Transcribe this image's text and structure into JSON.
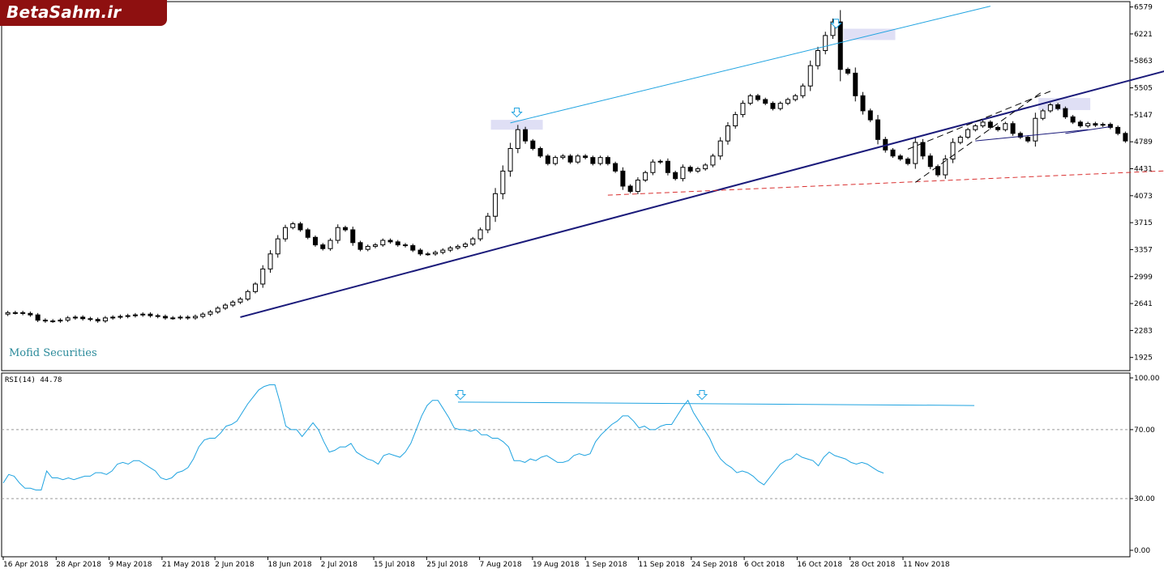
{
  "branding": {
    "logo_text": "BetaSahm.ir",
    "watermark": "Mofid Securities"
  },
  "colors": {
    "candle_up": "#ffffff",
    "candle_down": "#000000",
    "trend_main": "#1a1a7a",
    "trend_upper": "#1fa3e0",
    "trend_support": "#d93030",
    "rsi_line": "#1fa3e0",
    "highlight_box": "#dcdcf4",
    "arrow": "#1fa3e0"
  },
  "chart_data": [
    {
      "type": "candlestick",
      "name": "price",
      "x_ticks": [
        "16 Apr 2018",
        "28 Apr 2018",
        "9 May 2018",
        "21 May 2018",
        "2 Jun 2018",
        "18 Jun 2018",
        "2 Jul 2018",
        "15 Jul 2018",
        "25 Jul 2018",
        "7 Aug 2018",
        "19 Aug 2018",
        "1 Sep 2018",
        "11 Sep 2018",
        "24 Sep 2018",
        "6 Oct 2018",
        "16 Oct 2018",
        "28 Oct 2018",
        "11 Nov 2018"
      ],
      "y_ticks": [
        1925,
        2283,
        2641,
        2999,
        3357,
        3715,
        4073,
        4431,
        4789,
        5147,
        5505,
        5863,
        6221,
        6579
      ],
      "ylim": [
        1750,
        6650
      ],
      "closes": [
        2520,
        2520,
        2510,
        2490,
        2420,
        2410,
        2410,
        2420,
        2450,
        2460,
        2440,
        2430,
        2410,
        2450,
        2460,
        2470,
        2480,
        2490,
        2500,
        2480,
        2470,
        2450,
        2450,
        2460,
        2450,
        2470,
        2500,
        2530,
        2580,
        2620,
        2660,
        2700,
        2800,
        2900,
        3100,
        3300,
        3500,
        3650,
        3700,
        3620,
        3520,
        3420,
        3370,
        3480,
        3650,
        3620,
        3450,
        3360,
        3400,
        3420,
        3480,
        3460,
        3420,
        3410,
        3350,
        3300,
        3300,
        3320,
        3350,
        3380,
        3400,
        3430,
        3500,
        3620,
        3800,
        4100,
        4400,
        4700,
        4950,
        4800,
        4700,
        4600,
        4500,
        4580,
        4600,
        4520,
        4600,
        4580,
        4500,
        4580,
        4500,
        4400,
        4200,
        4130,
        4280,
        4380,
        4520,
        4530,
        4380,
        4300,
        4450,
        4400,
        4430,
        4480,
        4600,
        4800,
        5000,
        5150,
        5300,
        5400,
        5350,
        5300,
        5230,
        5300,
        5350,
        5400,
        5530,
        5800,
        6000,
        6200,
        6380,
        5750,
        5700,
        5400,
        5200,
        5080,
        4820,
        4680,
        4600,
        4560,
        4500,
        4780,
        4600,
        4460,
        4350,
        4560,
        4780,
        4850,
        4950,
        5000,
        5050,
        4980,
        4950,
        5030,
        4900,
        4850,
        4800,
        5100,
        5200,
        5280,
        5230,
        5120,
        5050,
        5000,
        5030,
        5010,
        5020,
        4980,
        4900,
        4800
      ]
    },
    {
      "type": "line",
      "name": "RSI(14)",
      "label": "RSI(14) 44.78",
      "last_value": 44.78,
      "y_ticks": [
        "100.00",
        "70.00",
        "30.00",
        "0.00"
      ],
      "ylim": [
        0,
        100
      ],
      "levels": [
        70,
        30
      ],
      "values": [
        39,
        44,
        43,
        39,
        36,
        36,
        35,
        35,
        46,
        42,
        42,
        41,
        42,
        41,
        42,
        43,
        43,
        45,
        45,
        44,
        46,
        50,
        51,
        50,
        52,
        52,
        50,
        48,
        46,
        42,
        41,
        42,
        45,
        46,
        48,
        53,
        60,
        64,
        65,
        65,
        68,
        72,
        73,
        75,
        80,
        85,
        89,
        93,
        95,
        96,
        96,
        85,
        72,
        70,
        70,
        66,
        70,
        74,
        70,
        63,
        57,
        58,
        60,
        60,
        62,
        57,
        55,
        53,
        52,
        50,
        55,
        56,
        55,
        54,
        57,
        62,
        70,
        78,
        84,
        87,
        87,
        82,
        77,
        71,
        70,
        70,
        69,
        70,
        67,
        67,
        65,
        65,
        63,
        60,
        52,
        52,
        51,
        53,
        52,
        54,
        55,
        53,
        51,
        51,
        52,
        55,
        56,
        55,
        56,
        63,
        67,
        70,
        73,
        75,
        78,
        78,
        75,
        71,
        72,
        70,
        70,
        72,
        73,
        73,
        78,
        83,
        87,
        80,
        75,
        70,
        65,
        58,
        53,
        50,
        48,
        45,
        46,
        45,
        43,
        40,
        38,
        42,
        46,
        50,
        52,
        53,
        56,
        54,
        53,
        52,
        49,
        54,
        57,
        55,
        54,
        53,
        51,
        50,
        51,
        50,
        48,
        46,
        44.78
      ]
    }
  ]
}
